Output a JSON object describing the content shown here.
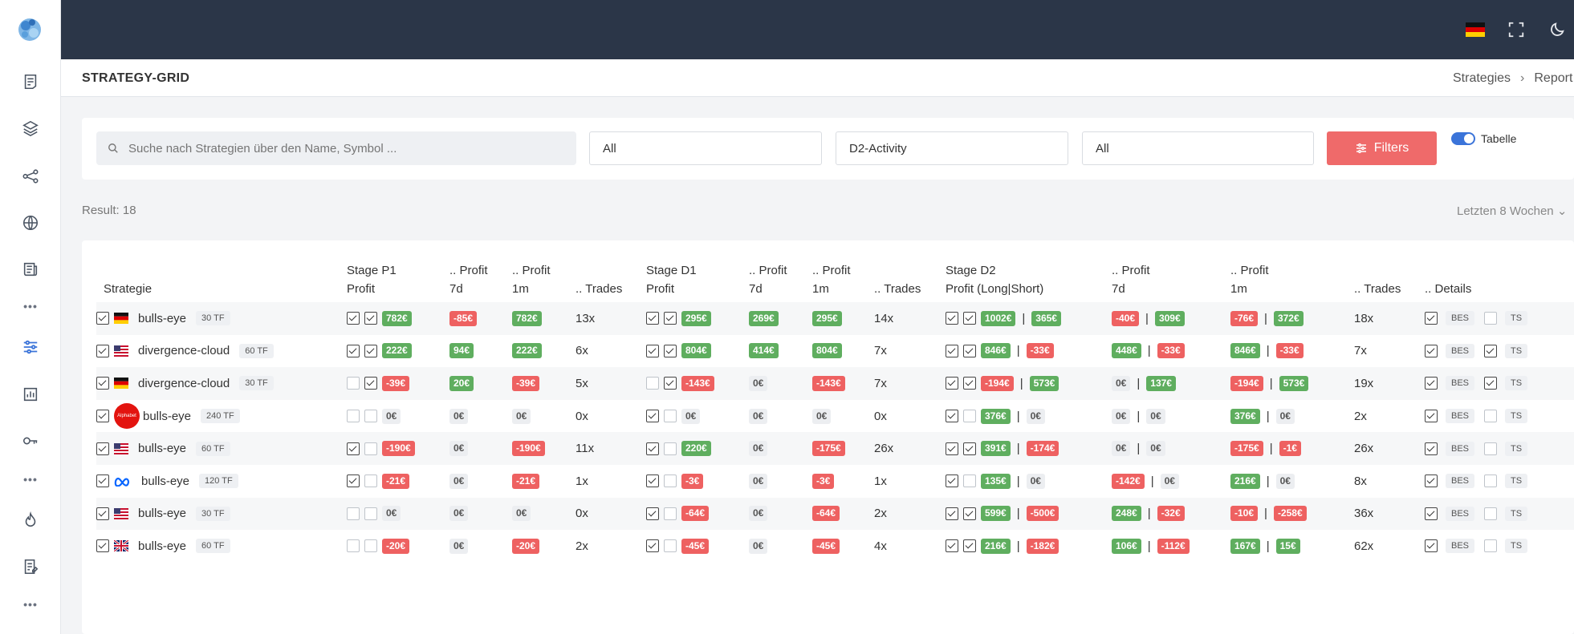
{
  "page": {
    "title": "STRATEGY-GRID"
  },
  "breadcrumb": {
    "item1": "Strategies",
    "item2": "Report"
  },
  "filters": {
    "search_placeholder": "Suche nach Strategien über den Name, Symbol ...",
    "select1": "All",
    "select2": "D2-Activity",
    "select3": "All",
    "filters_button": "Filters",
    "toggle_label": "Tabelle"
  },
  "result": {
    "label": "Result: 18",
    "range": "Letzten 8 Wochen"
  },
  "table": {
    "headers": {
      "strategie": "Strategie",
      "p1_l1": "Stage P1",
      "p1_l2": "Profit",
      "p1_7d_l1": ".. Profit",
      "p1_7d_l2": "7d",
      "p1_1m_l1": ".. Profit",
      "p1_1m_l2": "1m",
      "p1_trades": ".. Trades",
      "d1_l1": "Stage D1",
      "d1_l2": "Profit",
      "d1_7d_l1": ".. Profit",
      "d1_7d_l2": "7d",
      "d1_1m_l1": ".. Profit",
      "d1_1m_l2": "1m",
      "d1_trades": ".. Trades",
      "d2_l1": "Stage D2",
      "d2_l2": "Profit (Long|Short)",
      "d2_7d_l1": ".. Profit",
      "d2_7d_l2": "7d",
      "d2_1m_l1": ".. Profit",
      "d2_1m_l2": "1m",
      "d2_trades": ".. Trades",
      "details": ".. Details"
    },
    "rows": [
      {
        "name": "bulls-eye",
        "flag": "de",
        "tf": "30 TF",
        "p1": "782€",
        "p1_7d": "-85€",
        "p1_1m": "782€",
        "p1_trades": "13x",
        "d1": "295€",
        "d1_7d": "269€",
        "d1_1m": "295€",
        "d1_trades": "14x",
        "d2_long": "1002€",
        "d2_short": "365€",
        "d2_7d_long": "-40€",
        "d2_7d_short": "309€",
        "d2_1m_long": "-76€",
        "d2_1m_short": "372€",
        "d2_trades": "18x",
        "bes": "BES",
        "ts": "TS"
      },
      {
        "name": "divergence-cloud",
        "flag": "us",
        "tf": "60 TF",
        "p1": "222€",
        "p1_7d": "94€",
        "p1_1m": "222€",
        "p1_trades": "6x",
        "d1": "804€",
        "d1_7d": "414€",
        "d1_1m": "804€",
        "d1_trades": "7x",
        "d2_long": "846€",
        "d2_short": "-33€",
        "d2_7d_long": "448€",
        "d2_7d_short": "-33€",
        "d2_1m_long": "846€",
        "d2_1m_short": "-33€",
        "d2_trades": "7x",
        "bes": "BES",
        "ts": "TS"
      },
      {
        "name": "divergence-cloud",
        "flag": "de",
        "tf": "30 TF",
        "p1": "-39€",
        "p1_7d": "20€",
        "p1_1m": "-39€",
        "p1_trades": "5x",
        "d1": "-143€",
        "d1_7d": "0€",
        "d1_1m": "-143€",
        "d1_trades": "7x",
        "d2_long": "-194€",
        "d2_short": "573€",
        "d2_7d_long": "0€",
        "d2_7d_short": "137€",
        "d2_1m_long": "-194€",
        "d2_1m_short": "573€",
        "d2_trades": "19x",
        "bes": "BES",
        "ts": "TS"
      },
      {
        "name": "bulls-eye",
        "flag": "alphabet",
        "logo_text": "Alphabet",
        "tf": "240 TF",
        "p1": "0€",
        "p1_7d": "0€",
        "p1_1m": "0€",
        "p1_trades": "0x",
        "d1": "0€",
        "d1_7d": "0€",
        "d1_1m": "0€",
        "d1_trades": "0x",
        "d2_long": "376€",
        "d2_short": "0€",
        "d2_7d_long": "0€",
        "d2_7d_short": "0€",
        "d2_1m_long": "376€",
        "d2_1m_short": "0€",
        "d2_trades": "2x",
        "bes": "BES",
        "ts": "TS"
      },
      {
        "name": "bulls-eye",
        "flag": "us",
        "tf": "60 TF",
        "p1": "-190€",
        "p1_7d": "0€",
        "p1_1m": "-190€",
        "p1_trades": "11x",
        "d1": "220€",
        "d1_7d": "0€",
        "d1_1m": "-175€",
        "d1_trades": "26x",
        "d2_long": "391€",
        "d2_short": "-174€",
        "d2_7d_long": "0€",
        "d2_7d_short": "0€",
        "d2_1m_long": "-175€",
        "d2_1m_short": "-1€",
        "d2_trades": "26x",
        "bes": "BES",
        "ts": "TS"
      },
      {
        "name": "bulls-eye",
        "flag": "meta",
        "tf": "120 TF",
        "p1": "-21€",
        "p1_7d": "0€",
        "p1_1m": "-21€",
        "p1_trades": "1x",
        "d1": "-3€",
        "d1_7d": "0€",
        "d1_1m": "-3€",
        "d1_trades": "1x",
        "d2_long": "135€",
        "d2_short": "0€",
        "d2_7d_long": "-142€",
        "d2_7d_short": "0€",
        "d2_1m_long": "216€",
        "d2_1m_short": "0€",
        "d2_trades": "8x",
        "bes": "BES",
        "ts": "TS"
      },
      {
        "name": "bulls-eye",
        "flag": "us",
        "tf": "30 TF",
        "p1": "0€",
        "p1_7d": "0€",
        "p1_1m": "0€",
        "p1_trades": "0x",
        "d1": "-64€",
        "d1_7d": "0€",
        "d1_1m": "-64€",
        "d1_trades": "2x",
        "d2_long": "599€",
        "d2_short": "-500€",
        "d2_7d_long": "248€",
        "d2_7d_short": "-32€",
        "d2_1m_long": "-10€",
        "d2_1m_short": "-258€",
        "d2_trades": "36x",
        "bes": "BES",
        "ts": "TS"
      },
      {
        "name": "bulls-eye",
        "flag": "uk",
        "tf": "60 TF",
        "p1": "-20€",
        "p1_7d": "0€",
        "p1_1m": "-20€",
        "p1_trades": "2x",
        "d1": "-45€",
        "d1_7d": "0€",
        "d1_1m": "-45€",
        "d1_trades": "4x",
        "d2_long": "216€",
        "d2_short": "-182€",
        "d2_7d_long": "106€",
        "d2_7d_short": "-112€",
        "d2_1m_long": "167€",
        "d2_1m_short": "15€",
        "d2_trades": "62x",
        "bes": "BES",
        "ts": "TS"
      }
    ]
  },
  "colors": {
    "topbar": "#2b3648",
    "accent": "#ef6a6a",
    "positive": "#5fae5f",
    "negative": "#ee6161",
    "active_nav": "#3b74d9"
  }
}
